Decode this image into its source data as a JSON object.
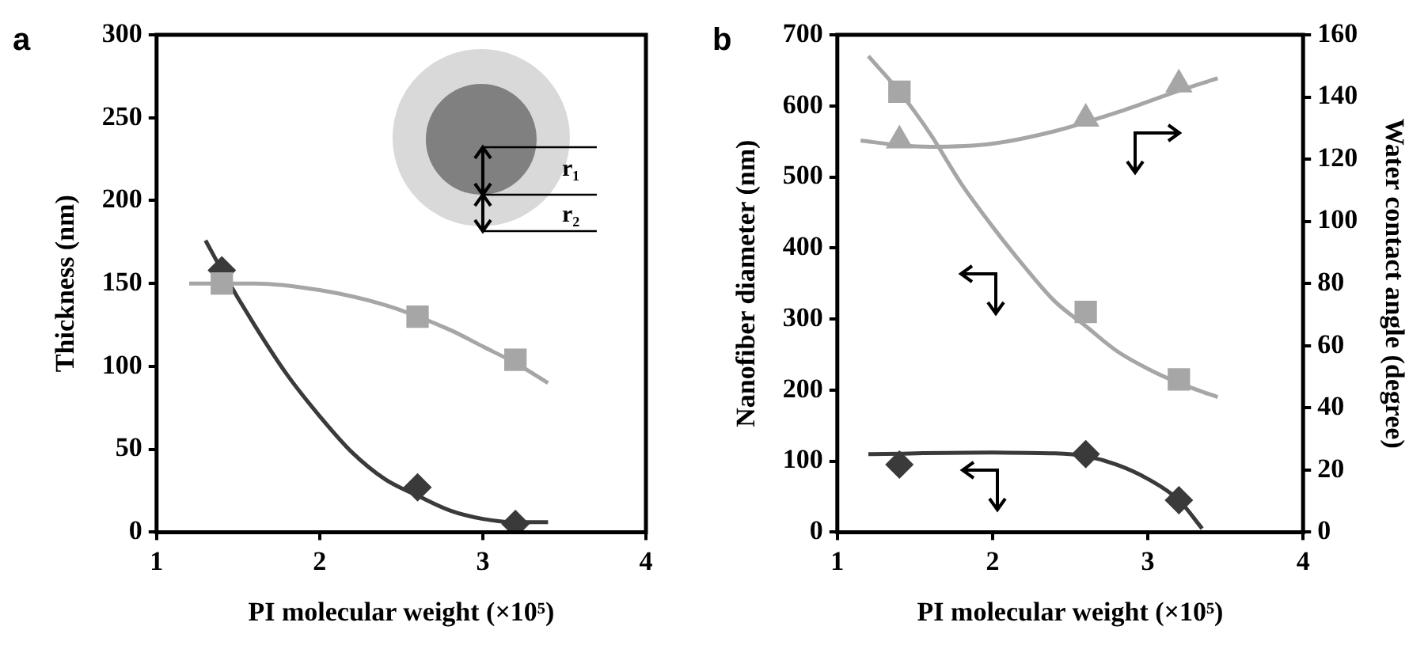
{
  "chart_data": [
    {
      "type": "scatter",
      "title": "a",
      "xlabel": "PI molecular weight (×10⁵)",
      "ylabel": "Thickness (nm)",
      "x": [
        1.4,
        2.6,
        3.2
      ],
      "xlim": [
        1,
        4
      ],
      "xticks": [
        1,
        2,
        3,
        4
      ],
      "ylim": [
        0,
        300
      ],
      "yticks": [
        0,
        50,
        100,
        150,
        200,
        250,
        300
      ],
      "grid": false,
      "legend": false,
      "annotations": [
        "r₁",
        "r₂"
      ],
      "series": [
        {
          "type": "line",
          "color": "#a6a6a6",
          "x": [
            1.2,
            1.6,
            2.0,
            2.4,
            2.8,
            3.0,
            3.2,
            3.4
          ],
          "values": [
            150,
            150,
            146,
            137,
            122,
            112,
            102,
            90
          ],
          "marker": "none"
        },
        {
          "type": "line",
          "color": "#3a3a3a",
          "x": [
            1.3,
            1.4,
            1.6,
            1.8,
            2.0,
            2.2,
            2.4,
            2.6,
            2.8,
            3.0,
            3.2,
            3.4
          ],
          "values": [
            176,
            158,
            125,
            95,
            70,
            48,
            32,
            22,
            13,
            8,
            6,
            6
          ],
          "marker": "none"
        },
        {
          "type": "scatter",
          "color": "#a6a6a6",
          "values": [
            150,
            130,
            104
          ],
          "marker": "square"
        },
        {
          "type": "scatter",
          "color": "#3a3a3a",
          "values": [
            158,
            27,
            5
          ],
          "marker": "diamond"
        }
      ]
    },
    {
      "type": "scatter",
      "title": "b",
      "xlabel": "PI molecular weight (×10⁵)",
      "ylabel": "Nanofiber diameter (nm)",
      "y2label": "Water contact angle (degree)",
      "x": [
        1.4,
        2.6,
        3.2
      ],
      "xlim": [
        1,
        4
      ],
      "xticks": [
        1,
        2,
        3,
        4
      ],
      "ylim": [
        0,
        700
      ],
      "yticks": [
        0,
        100,
        200,
        300,
        400,
        500,
        600,
        700
      ],
      "y2lim": [
        0,
        160
      ],
      "y2ticks": [
        0,
        20,
        40,
        60,
        80,
        100,
        120,
        140,
        160
      ],
      "grid": false,
      "legend": false,
      "series": [
        {
          "type": "line",
          "color": "#a6a6a6",
          "x": [
            1.2,
            1.4,
            1.6,
            1.8,
            2.0,
            2.2,
            2.4,
            2.6,
            2.8,
            3.0,
            3.2,
            3.45
          ],
          "values": [
            670,
            620,
            560,
            490,
            430,
            375,
            325,
            290,
            255,
            230,
            210,
            190
          ],
          "marker": "none"
        },
        {
          "type": "line",
          "color": "#a6a6a6",
          "axis": "y2",
          "x": [
            1.15,
            1.4,
            1.6,
            2.0,
            2.4,
            2.8,
            3.2,
            3.45
          ],
          "values": [
            126,
            124.5,
            124,
            125,
            129,
            135,
            142,
            146
          ],
          "marker": "none"
        },
        {
          "type": "line",
          "color": "#3a3a3a",
          "x": [
            1.2,
            2.0,
            2.4,
            2.6,
            2.8,
            3.0,
            3.2,
            3.35
          ],
          "values": [
            110,
            112,
            111,
            107,
            95,
            75,
            45,
            5
          ],
          "marker": "none"
        },
        {
          "type": "scatter",
          "color": "#a6a6a6",
          "values": [
            620,
            310,
            215
          ],
          "marker": "square"
        },
        {
          "type": "scatter",
          "color": "#a6a6a6",
          "axis": "y2",
          "values": [
            126,
            133,
            144
          ],
          "marker": "triangle"
        },
        {
          "type": "scatter",
          "color": "#3a3a3a",
          "values": [
            95,
            110,
            45
          ],
          "marker": "diamond"
        }
      ]
    }
  ]
}
